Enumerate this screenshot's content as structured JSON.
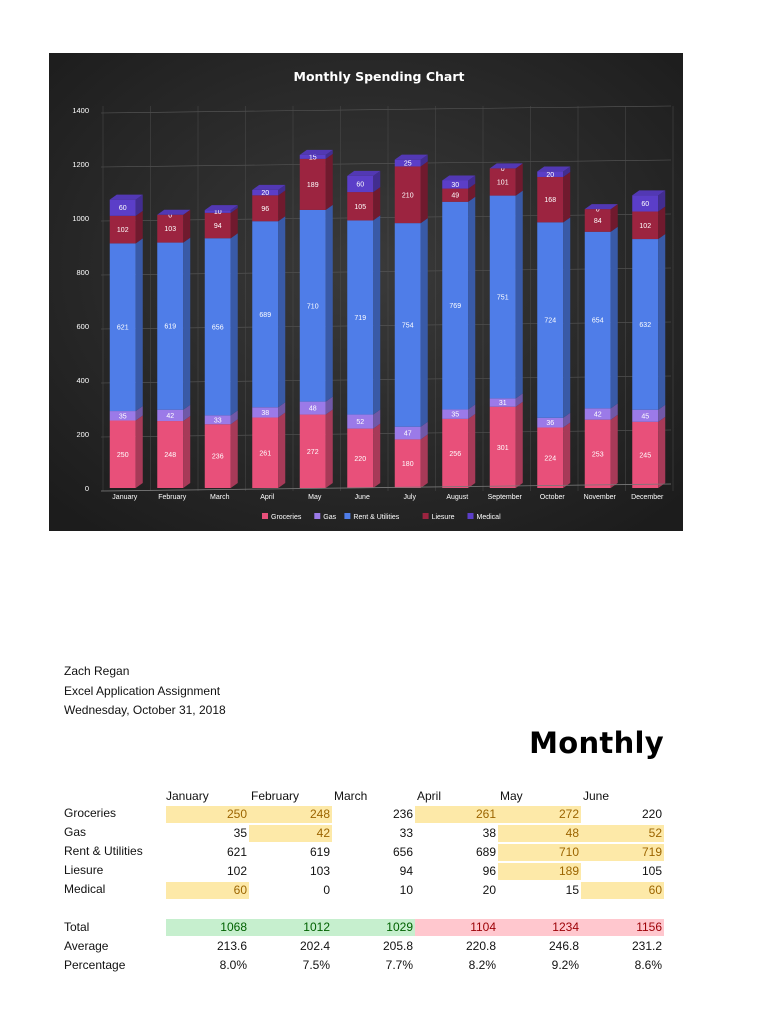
{
  "chart_data": {
    "type": "bar",
    "stacked": true,
    "title": "Monthly Spending Chart",
    "categories": [
      "January",
      "February",
      "March",
      "April",
      "May",
      "June",
      "July",
      "August",
      "September",
      "October",
      "November",
      "December"
    ],
    "ylim": [
      0,
      1400
    ],
    "yticks": [
      "0",
      "200",
      "400",
      "600",
      "800",
      "1000",
      "1200",
      "1400"
    ],
    "series": [
      {
        "name": "Groceries",
        "color": "#e8507a",
        "values": [
          250,
          248,
          236,
          261,
          272,
          220,
          180,
          256,
          301,
          224,
          253,
          245
        ]
      },
      {
        "name": "Gas",
        "color": "#9b7ae8",
        "values": [
          35,
          42,
          33,
          38,
          48,
          52,
          47,
          35,
          31,
          36,
          42,
          45
        ]
      },
      {
        "name": "Rent & Utilities",
        "color": "#4f7de8",
        "values": [
          621,
          619,
          656,
          689,
          710,
          719,
          754,
          769,
          751,
          724,
          654,
          632
        ]
      },
      {
        "name": "Liesure",
        "color": "#9c2440",
        "values": [
          102,
          103,
          94,
          96,
          189,
          105,
          210,
          49,
          101,
          168,
          84,
          102
        ]
      },
      {
        "name": "Medical",
        "color": "#5b3ec8",
        "values": [
          60,
          0,
          10,
          20,
          15,
          60,
          25,
          30,
          0,
          20,
          0,
          60
        ]
      }
    ],
    "legend_position": "bottom"
  },
  "document": {
    "author": "Zach Regan",
    "assignment": "Excel Application Assignment",
    "date": "Wednesday, October 31, 2018",
    "sheet_title": "Monthly"
  },
  "table": {
    "months": [
      "January",
      "February",
      "March",
      "April",
      "May",
      "June"
    ],
    "rows": [
      {
        "label": "Groceries",
        "values": [
          "250",
          "248",
          "236",
          "261",
          "272",
          "220"
        ]
      },
      {
        "label": "Gas",
        "values": [
          "35",
          "42",
          "33",
          "38",
          "48",
          "52"
        ]
      },
      {
        "label": "Rent & Utilities",
        "values": [
          "621",
          "619",
          "656",
          "689",
          "710",
          "719"
        ]
      },
      {
        "label": "Liesure",
        "values": [
          "102",
          "103",
          "94",
          "96",
          "189",
          "105"
        ]
      },
      {
        "label": "Medical",
        "values": [
          "60",
          "0",
          "10",
          "20",
          "15",
          "60"
        ]
      }
    ],
    "total_label": "Total",
    "totals": [
      "1068",
      "1012",
      "1029",
      "1104",
      "1234",
      "1156"
    ],
    "average_label": "Average",
    "averages": [
      "213.6",
      "202.4",
      "205.8",
      "220.8",
      "246.8",
      "231.2"
    ],
    "percentage_label": "Percentage",
    "percentages": [
      "8.0%",
      "7.5%",
      "7.7%",
      "8.2%",
      "9.2%",
      "8.6%"
    ],
    "highlight_colors": {
      "yellow_bg": "#fde9a8",
      "yellow_fg": "#9c6500",
      "green_bg": "#c6efce",
      "green_fg": "#006100",
      "red_bg": "#ffc7ce",
      "red_fg": "#9c0006"
    }
  }
}
